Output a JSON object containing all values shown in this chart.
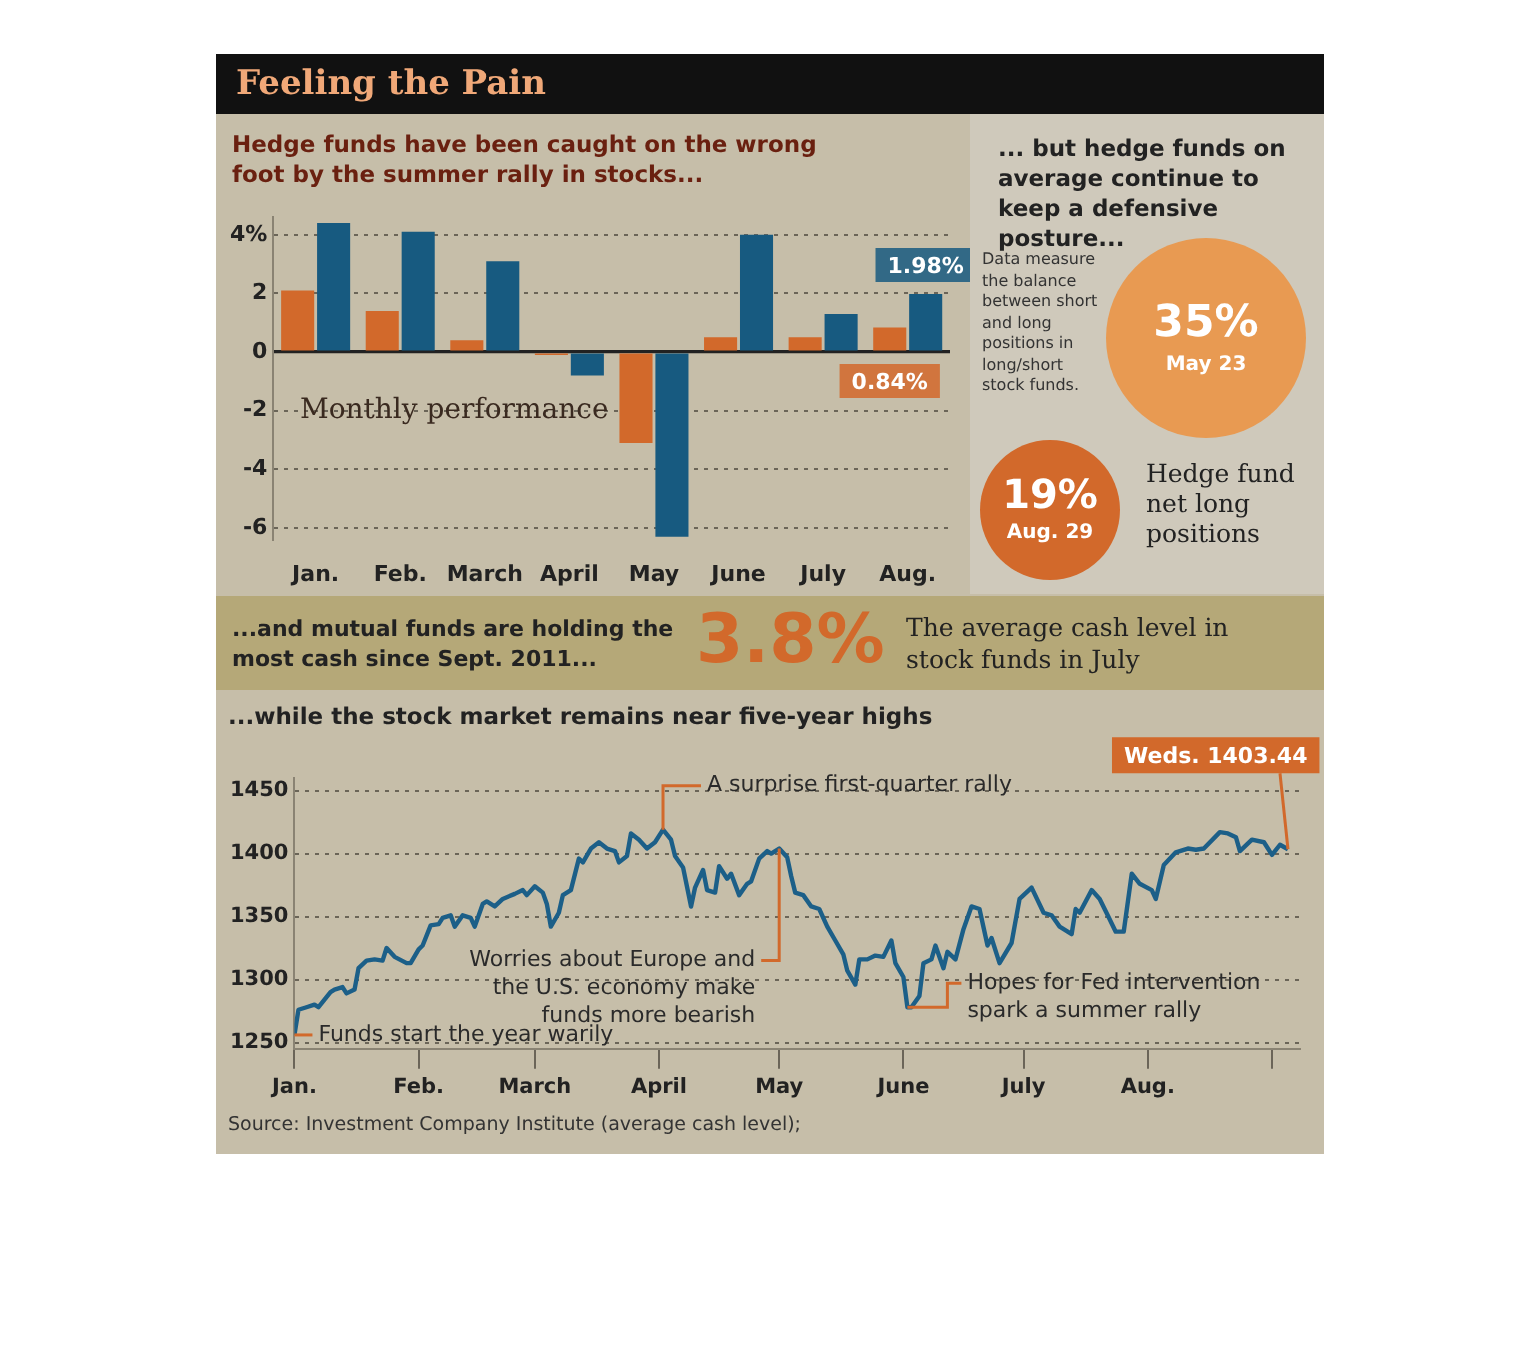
{
  "chart_data": [
    {
      "type": "bar",
      "title": "Feeling the Pain",
      "subtitle": "Hedge funds have been caught on the wrong foot by the summer rally in stocks...",
      "categories": [
        "Jan.",
        "Feb.",
        "March",
        "April",
        "May",
        "June",
        "July",
        "Aug."
      ],
      "series": [
        {
          "color": "#d2692b",
          "values": [
            2.1,
            1.4,
            0.4,
            -0.1,
            -3.1,
            0.5,
            0.5,
            0.84
          ],
          "value_labels": [
            null,
            null,
            null,
            null,
            null,
            null,
            null,
            "0.84%"
          ]
        },
        {
          "color": "#175a80",
          "values": [
            4.4,
            4.1,
            3.1,
            -0.8,
            -6.3,
            4.0,
            1.3,
            1.98
          ],
          "value_labels": [
            null,
            null,
            null,
            null,
            null,
            null,
            null,
            "1.98%"
          ]
        }
      ],
      "ylim": [
        -6.4,
        4.6
      ],
      "yticks": [
        -6,
        -4,
        -2,
        0,
        2,
        {
          "value": 4,
          "label": "4%"
        }
      ],
      "grid": "y",
      "annotations": [
        "Monthly performance"
      ]
    },
    {
      "type": "other",
      "title": "... but hedge funds on average continue to keep a defensive posture...",
      "annotations": [
        "Data measure the balance between short and long positions in long/short stock funds.",
        "35%",
        "May 23",
        "19%",
        "Aug. 29",
        "Hedge fund net long positions"
      ]
    },
    {
      "type": "other",
      "title": "...and mutual funds are holding the most cash since Sept. 2011...",
      "annotations": [
        "3.8%",
        "The average cash level in stock funds in July"
      ]
    },
    {
      "type": "line",
      "title": "...while the stock market remains near five-year highs",
      "x": [
        "--01-01",
        "--01-02",
        "--01-04",
        "--01-06",
        "--01-07",
        "--01-08",
        "--01-10",
        "--01-11",
        "--01-13",
        "--01-14",
        "--01-16",
        "--01-17",
        "--01-19",
        "--01-21",
        "--01-23",
        "--01-24",
        "--01-26",
        "--01-29",
        "--01-30",
        "--02-01",
        "--02-02",
        "--02-04",
        "--02-06",
        "--02-07",
        "--02-09",
        "--02-10",
        "--02-12",
        "--02-14",
        "--02-15",
        "--02-17",
        "--02-18",
        "--02-20",
        "--02-22",
        "--02-25",
        "--02-27",
        "--02-28",
        "--03-01",
        "--03-03",
        "--03-04",
        "--03-05",
        "--03-07",
        "--03-08",
        "--03-10",
        "--03-12",
        "--03-13",
        "--03-15",
        "--03-17",
        "--03-19",
        "--03-21",
        "--03-22",
        "--03-24",
        "--03-25",
        "--03-27",
        "--03-29",
        "--03-31",
        "--04-02",
        "--04-04",
        "--04-05",
        "--04-07",
        "--04-09",
        "--04-10",
        "--04-12",
        "--04-13",
        "--04-15",
        "--04-16",
        "--04-18",
        "--04-19",
        "--04-21",
        "--04-23",
        "--04-24",
        "--04-26",
        "--04-28",
        "--04-29",
        "--05-01",
        "--05-03",
        "--05-04",
        "--05-05",
        "--05-07",
        "--05-09",
        "--05-11",
        "--05-13",
        "--05-15",
        "--05-17",
        "--05-18",
        "--05-20",
        "--05-21",
        "--05-23",
        "--05-25",
        "--05-27",
        "--05-29",
        "--05-30",
        "--06-01",
        "--06-02",
        "--06-03",
        "--06-05",
        "--06-06",
        "--06-08",
        "--06-09",
        "--06-11",
        "--06-12",
        "--06-14",
        "--06-16",
        "--06-18",
        "--06-20",
        "--06-22",
        "--06-23",
        "--06-25",
        "--06-28",
        "--06-30",
        "--07-03",
        "--07-06",
        "--07-08",
        "--07-10",
        "--07-13",
        "--07-14",
        "--07-15",
        "--07-18",
        "--07-20",
        "--07-22",
        "--07-24",
        "--07-26",
        "--07-28",
        "--07-30",
        "--08-02",
        "--08-03",
        "--08-05",
        "--08-08",
        "--08-11",
        "--08-13",
        "--08-15",
        "--08-19",
        "--08-21",
        "--08-23",
        "--08-24",
        "--08-27",
        "--08-30",
        "--09-01",
        "--09-03",
        "--09-05"
      ],
      "series": [
        {
          "color": "#1c5f88",
          "values": [
            1256,
            1276,
            1278,
            1280,
            1278,
            1282,
            1290,
            1292,
            1294,
            1289,
            1292,
            1309,
            1315,
            1316,
            1315,
            1325,
            1318,
            1313,
            1313,
            1324,
            1327,
            1343,
            1344,
            1349,
            1351,
            1342,
            1351,
            1349,
            1342,
            1360,
            1362,
            1358,
            1364,
            1368,
            1371,
            1367,
            1374,
            1369,
            1360,
            1342,
            1353,
            1367,
            1371,
            1396,
            1393,
            1404,
            1409,
            1404,
            1402,
            1393,
            1398,
            1416,
            1411,
            1404,
            1409,
            1419,
            1411,
            1398,
            1389,
            1358,
            1373,
            1387,
            1371,
            1369,
            1390,
            1380,
            1384,
            1367,
            1376,
            1378,
            1396,
            1402,
            1400,
            1404,
            1397,
            1382,
            1369,
            1367,
            1358,
            1356,
            1342,
            1331,
            1320,
            1307,
            1296,
            1316,
            1316,
            1319,
            1318,
            1331,
            1313,
            1302,
            1278,
            1278,
            1287,
            1313,
            1316,
            1327,
            1309,
            1322,
            1316,
            1340,
            1358,
            1356,
            1327,
            1333,
            1313,
            1329,
            1364,
            1373,
            1353,
            1351,
            1342,
            1336,
            1356,
            1353,
            1371,
            1364,
            1351,
            1338,
            1338,
            1384,
            1376,
            1371,
            1364,
            1391,
            1401,
            1404,
            1403,
            1404,
            1417,
            1416,
            1413,
            1402,
            1411,
            1409,
            1399,
            1407,
            1403.44
          ]
        }
      ],
      "xlim": [
        "--01-01",
        "--09-08"
      ],
      "xticks": [
        {
          "value": "--01-01",
          "label": "Jan."
        },
        {
          "value": "--02-01",
          "label": "Feb."
        },
        {
          "value": "--03-01",
          "label": "March"
        },
        {
          "value": "--04-01",
          "label": "April"
        },
        {
          "value": "--05-01",
          "label": "May"
        },
        {
          "value": "--06-01",
          "label": "June"
        },
        {
          "value": "--07-01",
          "label": "July"
        },
        {
          "value": "--08-01",
          "label": "Aug."
        },
        {
          "value": "--09-01",
          "label": null
        }
      ],
      "ylim": [
        1245,
        1460
      ],
      "yticks": [
        1250,
        1300,
        1350,
        1400,
        1450
      ],
      "grid": "y",
      "annotations": [
        {
          "text": "Funds start the year warily",
          "x": "--01-01",
          "y": 1256
        },
        {
          "text": "A surprise first-quarter rally",
          "x": "--04-02",
          "y": 1419
        },
        {
          "text": "Worries about Europe and the U.S. economy make funds more bearish",
          "x": "--05-01",
          "y": 1404
        },
        {
          "text": "Hopes for Fed intervention spark a summer rally",
          "x": "--06-02",
          "y": 1278
        },
        {
          "text": "Weds. 1403.44",
          "x": "--09-05",
          "y": 1403.44
        },
        "Source: Investment Company Institute (average cash level);"
      ]
    }
  ]
}
